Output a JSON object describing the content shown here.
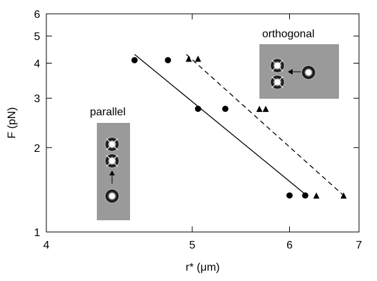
{
  "chart_data": {
    "type": "scatter",
    "xlabel": "r* (μm)",
    "ylabel": "F (pN)",
    "x_scale": "reciprocal",
    "y_scale": "log",
    "xlim": [
      4,
      7
    ],
    "ylim": [
      1,
      6
    ],
    "x_ticks": [
      4,
      5,
      6,
      7
    ],
    "y_ticks": [
      1,
      2,
      3,
      4,
      5,
      6
    ],
    "grid": false,
    "series": [
      {
        "marker": "circle",
        "points": [
          {
            "x": 4.55,
            "y": 4.1
          },
          {
            "x": 4.8,
            "y": 4.1
          },
          {
            "x": 5.05,
            "y": 2.75
          },
          {
            "x": 5.3,
            "y": 2.75
          },
          {
            "x": 6.0,
            "y": 1.35
          },
          {
            "x": 6.2,
            "y": 1.35
          }
        ],
        "fit_line": {
          "style": "solid",
          "from": {
            "x": 4.55,
            "y": 4.3
          },
          "to": {
            "x": 6.22,
            "y": 1.35
          }
        }
      },
      {
        "marker": "triangle",
        "points": [
          {
            "x": 4.97,
            "y": 4.15
          },
          {
            "x": 5.05,
            "y": 4.15
          },
          {
            "x": 5.65,
            "y": 2.75
          },
          {
            "x": 5.72,
            "y": 2.75
          },
          {
            "x": 6.35,
            "y": 1.35
          },
          {
            "x": 6.75,
            "y": 1.35
          }
        ],
        "fit_line": {
          "style": "dashed",
          "from": {
            "x": 4.95,
            "y": 4.3
          },
          "to": {
            "x": 6.75,
            "y": 1.35
          }
        }
      }
    ],
    "annotations": [
      {
        "text": "parallel",
        "inset": "vertical pair of trapped beads with a third bead below, arrow pointing up"
      },
      {
        "text": "orthogonal",
        "inset": "vertical pair of trapped beads with a third bead to the right, arrow pointing left"
      }
    ],
    "colors": {
      "marker": "#000000",
      "line": "#000000",
      "inset_bg": "#9a9a9a"
    }
  }
}
